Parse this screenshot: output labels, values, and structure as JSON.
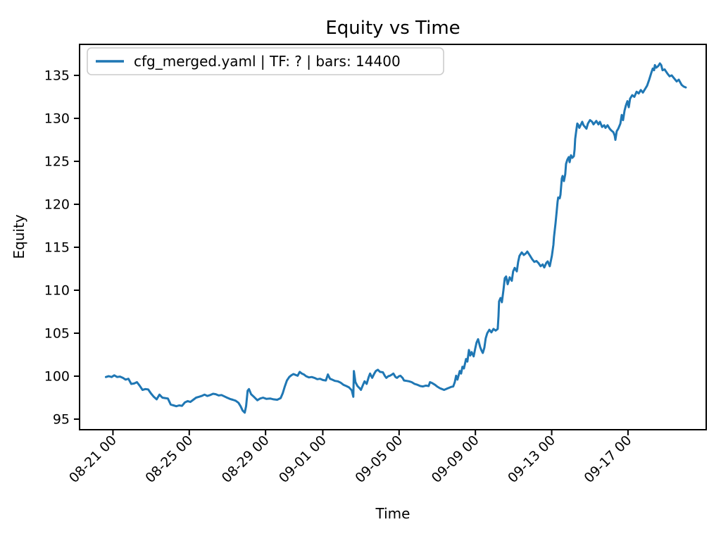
{
  "figure": {
    "title": "Equity vs Time",
    "xlabel": "Time",
    "ylabel": "Equity",
    "background": "#ffffff"
  },
  "legend": {
    "label": "cfg_merged.yaml | TF: ? | bars: 14400",
    "line_color": "#1f77b4",
    "border_color": "#cccccc",
    "position": "upper left"
  },
  "chart_data": {
    "type": "line",
    "title": "Equity vs Time",
    "xlabel": "Time",
    "ylabel": "Equity",
    "grid": false,
    "legend_position": "upper left",
    "series_name": "cfg_merged.yaml | TF: ? | bars: 14400",
    "line_color": "#1f77b4",
    "x_unit": "days since 08-21 00:00",
    "xlim_days": [
      -1.75,
      31.1
    ],
    "ylim": [
      93.77,
      138.61
    ],
    "y_ticks": [
      95,
      100,
      105,
      110,
      115,
      120,
      125,
      130,
      135
    ],
    "x_ticks": [
      {
        "d": 0,
        "label": "08-21 00"
      },
      {
        "d": 4,
        "label": "08-25 00"
      },
      {
        "d": 8,
        "label": "08-29 00"
      },
      {
        "d": 11,
        "label": "09-01 00"
      },
      {
        "d": 15,
        "label": "09-05 00"
      },
      {
        "d": 19,
        "label": "09-09 00"
      },
      {
        "d": 23,
        "label": "09-13 00"
      },
      {
        "d": 27,
        "label": "09-17 00"
      }
    ],
    "points": [
      [
        -0.37,
        99.9
      ],
      [
        -0.22,
        100.0
      ],
      [
        -0.07,
        99.9
      ],
      [
        0.07,
        100.1
      ],
      [
        0.22,
        99.9
      ],
      [
        0.37,
        99.95
      ],
      [
        0.52,
        99.8
      ],
      [
        0.66,
        99.6
      ],
      [
        0.81,
        99.7
      ],
      [
        0.96,
        99.1
      ],
      [
        1.11,
        99.15
      ],
      [
        1.26,
        99.3
      ],
      [
        1.4,
        98.9
      ],
      [
        1.55,
        98.4
      ],
      [
        1.7,
        98.5
      ],
      [
        1.85,
        98.45
      ],
      [
        1.99,
        98.0
      ],
      [
        2.14,
        97.6
      ],
      [
        2.29,
        97.3
      ],
      [
        2.44,
        97.85
      ],
      [
        2.59,
        97.5
      ],
      [
        2.73,
        97.45
      ],
      [
        2.88,
        97.4
      ],
      [
        3.03,
        96.7
      ],
      [
        3.18,
        96.6
      ],
      [
        3.32,
        96.5
      ],
      [
        3.47,
        96.6
      ],
      [
        3.62,
        96.55
      ],
      [
        3.77,
        96.95
      ],
      [
        3.92,
        97.1
      ],
      [
        4.06,
        97.0
      ],
      [
        4.21,
        97.25
      ],
      [
        4.36,
        97.5
      ],
      [
        4.51,
        97.6
      ],
      [
        4.65,
        97.7
      ],
      [
        4.8,
        97.85
      ],
      [
        4.95,
        97.7
      ],
      [
        5.1,
        97.8
      ],
      [
        5.25,
        97.95
      ],
      [
        5.39,
        97.9
      ],
      [
        5.54,
        97.75
      ],
      [
        5.69,
        97.8
      ],
      [
        5.84,
        97.65
      ],
      [
        5.98,
        97.5
      ],
      [
        6.13,
        97.35
      ],
      [
        6.28,
        97.25
      ],
      [
        6.43,
        97.15
      ],
      [
        6.58,
        96.9
      ],
      [
        6.69,
        96.5
      ],
      [
        6.8,
        96.0
      ],
      [
        6.91,
        95.75
      ],
      [
        6.98,
        96.5
      ],
      [
        7.06,
        98.3
      ],
      [
        7.13,
        98.5
      ],
      [
        7.24,
        97.9
      ],
      [
        7.39,
        97.6
      ],
      [
        7.57,
        97.2
      ],
      [
        7.72,
        97.4
      ],
      [
        7.87,
        97.5
      ],
      [
        8.05,
        97.35
      ],
      [
        8.24,
        97.4
      ],
      [
        8.42,
        97.3
      ],
      [
        8.61,
        97.25
      ],
      [
        8.79,
        97.45
      ],
      [
        8.9,
        98.0
      ],
      [
        9.01,
        98.8
      ],
      [
        9.12,
        99.5
      ],
      [
        9.24,
        99.9
      ],
      [
        9.35,
        100.1
      ],
      [
        9.46,
        100.25
      ],
      [
        9.57,
        100.15
      ],
      [
        9.68,
        100.05
      ],
      [
        9.79,
        100.5
      ],
      [
        9.9,
        100.3
      ],
      [
        10.01,
        100.2
      ],
      [
        10.12,
        100.0
      ],
      [
        10.27,
        99.85
      ],
      [
        10.42,
        99.9
      ],
      [
        10.56,
        99.8
      ],
      [
        10.71,
        99.65
      ],
      [
        10.86,
        99.7
      ],
      [
        11.01,
        99.55
      ],
      [
        11.16,
        99.5
      ],
      [
        11.27,
        100.2
      ],
      [
        11.38,
        99.7
      ],
      [
        11.49,
        99.6
      ],
      [
        11.64,
        99.45
      ],
      [
        11.78,
        99.4
      ],
      [
        11.93,
        99.25
      ],
      [
        12.08,
        99.0
      ],
      [
        12.23,
        98.85
      ],
      [
        12.37,
        98.7
      ],
      [
        12.52,
        98.35
      ],
      [
        12.6,
        97.6
      ],
      [
        12.63,
        100.6
      ],
      [
        12.71,
        99.3
      ],
      [
        12.82,
        98.85
      ],
      [
        12.93,
        98.6
      ],
      [
        13.0,
        98.4
      ],
      [
        13.11,
        99.0
      ],
      [
        13.19,
        99.4
      ],
      [
        13.3,
        99.1
      ],
      [
        13.41,
        99.9
      ],
      [
        13.48,
        100.3
      ],
      [
        13.59,
        99.8
      ],
      [
        13.7,
        100.3
      ],
      [
        13.78,
        100.6
      ],
      [
        13.89,
        100.75
      ],
      [
        14.0,
        100.5
      ],
      [
        14.15,
        100.45
      ],
      [
        14.26,
        100.0
      ],
      [
        14.33,
        99.8
      ],
      [
        14.44,
        100.0
      ],
      [
        14.52,
        100.05
      ],
      [
        14.63,
        100.2
      ],
      [
        14.7,
        100.3
      ],
      [
        14.81,
        99.9
      ],
      [
        14.89,
        99.8
      ],
      [
        15.0,
        100.0
      ],
      [
        15.07,
        100.05
      ],
      [
        15.18,
        99.8
      ],
      [
        15.26,
        99.5
      ],
      [
        15.4,
        99.45
      ],
      [
        15.52,
        99.4
      ],
      [
        15.66,
        99.3
      ],
      [
        15.81,
        99.1
      ],
      [
        15.96,
        99.0
      ],
      [
        16.11,
        98.85
      ],
      [
        16.25,
        98.8
      ],
      [
        16.4,
        98.9
      ],
      [
        16.55,
        98.85
      ],
      [
        16.62,
        99.3
      ],
      [
        16.73,
        99.2
      ],
      [
        16.88,
        99.0
      ],
      [
        16.99,
        98.8
      ],
      [
        17.14,
        98.6
      ],
      [
        17.25,
        98.5
      ],
      [
        17.36,
        98.4
      ],
      [
        17.51,
        98.55
      ],
      [
        17.62,
        98.65
      ],
      [
        17.73,
        98.75
      ],
      [
        17.84,
        98.8
      ],
      [
        17.92,
        99.3
      ],
      [
        17.99,
        100.05
      ],
      [
        18.06,
        99.6
      ],
      [
        18.18,
        100.6
      ],
      [
        18.25,
        100.3
      ],
      [
        18.32,
        101.1
      ],
      [
        18.4,
        100.9
      ],
      [
        18.51,
        102.0
      ],
      [
        18.58,
        101.7
      ],
      [
        18.66,
        103.05
      ],
      [
        18.73,
        102.4
      ],
      [
        18.8,
        102.8
      ],
      [
        18.91,
        102.3
      ],
      [
        18.99,
        103.2
      ],
      [
        19.06,
        103.9
      ],
      [
        19.14,
        104.3
      ],
      [
        19.25,
        103.4
      ],
      [
        19.32,
        103.0
      ],
      [
        19.39,
        102.7
      ],
      [
        19.47,
        103.3
      ],
      [
        19.54,
        104.4
      ],
      [
        19.62,
        105.0
      ],
      [
        19.73,
        105.4
      ],
      [
        19.84,
        105.1
      ],
      [
        19.95,
        105.5
      ],
      [
        20.06,
        105.3
      ],
      [
        20.17,
        105.5
      ],
      [
        20.21,
        107.0
      ],
      [
        20.24,
        108.7
      ],
      [
        20.32,
        109.1
      ],
      [
        20.39,
        108.6
      ],
      [
        20.47,
        110.0
      ],
      [
        20.54,
        111.4
      ],
      [
        20.61,
        111.6
      ],
      [
        20.69,
        110.7
      ],
      [
        20.8,
        111.5
      ],
      [
        20.91,
        111.1
      ],
      [
        20.98,
        112.2
      ],
      [
        21.06,
        112.6
      ],
      [
        21.17,
        112.2
      ],
      [
        21.24,
        113.3
      ],
      [
        21.31,
        114.0
      ],
      [
        21.43,
        114.4
      ],
      [
        21.54,
        114.1
      ],
      [
        21.65,
        114.3
      ],
      [
        21.72,
        114.5
      ],
      [
        21.87,
        114.0
      ],
      [
        21.98,
        113.6
      ],
      [
        22.09,
        113.3
      ],
      [
        22.2,
        113.4
      ],
      [
        22.31,
        113.15
      ],
      [
        22.42,
        112.8
      ],
      [
        22.53,
        113.0
      ],
      [
        22.61,
        112.65
      ],
      [
        22.72,
        113.2
      ],
      [
        22.79,
        113.35
      ],
      [
        22.9,
        112.8
      ],
      [
        23.01,
        114.0
      ],
      [
        23.09,
        115.3
      ],
      [
        23.12,
        116.2
      ],
      [
        23.2,
        117.8
      ],
      [
        23.27,
        119.4
      ],
      [
        23.31,
        120.3
      ],
      [
        23.34,
        120.8
      ],
      [
        23.42,
        120.7
      ],
      [
        23.46,
        121.1
      ],
      [
        23.49,
        121.9
      ],
      [
        23.53,
        123.0
      ],
      [
        23.57,
        123.3
      ],
      [
        23.64,
        122.7
      ],
      [
        23.71,
        123.5
      ],
      [
        23.75,
        124.7
      ],
      [
        23.82,
        125.2
      ],
      [
        23.9,
        125.5
      ],
      [
        23.94,
        124.9
      ],
      [
        24.01,
        125.7
      ],
      [
        24.08,
        125.4
      ],
      [
        24.16,
        125.6
      ],
      [
        24.2,
        126.4
      ],
      [
        24.23,
        127.6
      ],
      [
        24.27,
        128.3
      ],
      [
        24.31,
        128.9
      ],
      [
        24.34,
        129.4
      ],
      [
        24.38,
        129.3
      ],
      [
        24.45,
        128.9
      ],
      [
        24.6,
        129.6
      ],
      [
        24.67,
        129.2
      ],
      [
        24.82,
        128.8
      ],
      [
        24.9,
        129.4
      ],
      [
        25.01,
        129.8
      ],
      [
        25.12,
        129.6
      ],
      [
        25.19,
        129.3
      ],
      [
        25.34,
        129.7
      ],
      [
        25.45,
        129.3
      ],
      [
        25.53,
        129.6
      ],
      [
        25.64,
        129.0
      ],
      [
        25.75,
        129.2
      ],
      [
        25.82,
        128.9
      ],
      [
        25.93,
        129.2
      ],
      [
        26.04,
        128.8
      ],
      [
        26.12,
        128.6
      ],
      [
        26.23,
        128.4
      ],
      [
        26.3,
        128.0
      ],
      [
        26.34,
        127.5
      ],
      [
        26.41,
        128.5
      ],
      [
        26.49,
        128.8
      ],
      [
        26.6,
        129.4
      ],
      [
        26.67,
        130.4
      ],
      [
        26.74,
        129.8
      ],
      [
        26.82,
        130.9
      ],
      [
        26.89,
        131.5
      ],
      [
        26.97,
        132.0
      ],
      [
        27.04,
        131.3
      ],
      [
        27.11,
        132.3
      ],
      [
        27.22,
        132.7
      ],
      [
        27.33,
        132.5
      ],
      [
        27.45,
        133.1
      ],
      [
        27.56,
        132.9
      ],
      [
        27.67,
        133.3
      ],
      [
        27.78,
        133.0
      ],
      [
        27.89,
        133.4
      ],
      [
        28.0,
        133.8
      ],
      [
        28.11,
        134.5
      ],
      [
        28.22,
        135.3
      ],
      [
        28.3,
        135.8
      ],
      [
        28.37,
        135.6
      ],
      [
        28.41,
        136.2
      ],
      [
        28.48,
        135.9
      ],
      [
        28.59,
        136.1
      ],
      [
        28.67,
        136.4
      ],
      [
        28.74,
        136.2
      ],
      [
        28.81,
        135.6
      ],
      [
        28.92,
        135.7
      ],
      [
        29.07,
        135.2
      ],
      [
        29.18,
        134.9
      ],
      [
        29.29,
        135.0
      ],
      [
        29.44,
        134.6
      ],
      [
        29.55,
        134.3
      ],
      [
        29.66,
        134.5
      ],
      [
        29.81,
        133.9
      ],
      [
        29.92,
        133.7
      ],
      [
        30.03,
        133.6
      ]
    ]
  }
}
